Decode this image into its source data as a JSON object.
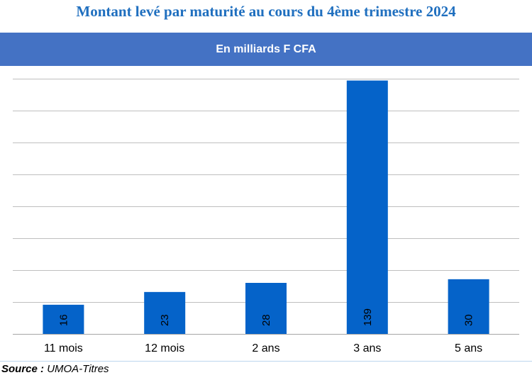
{
  "title": "Montant levé par maturité au cours du 4ème trimestre 2024",
  "subtitle": "En milliards F CFA",
  "source": {
    "label": "Source :",
    "value": "UMOA-Titres"
  },
  "colors": {
    "bar": "#0563c9",
    "banner": "#4472c4",
    "title": "#1f6fbf",
    "grid": "#bfbfbf"
  },
  "chart_data": {
    "type": "bar",
    "categories": [
      "11 mois",
      "12 mois",
      "2 ans",
      "3 ans",
      "5 ans"
    ],
    "values": [
      16,
      23,
      28,
      139,
      30
    ],
    "ylim": [
      0,
      140
    ],
    "grid": true,
    "ytick_step": 17.5
  }
}
